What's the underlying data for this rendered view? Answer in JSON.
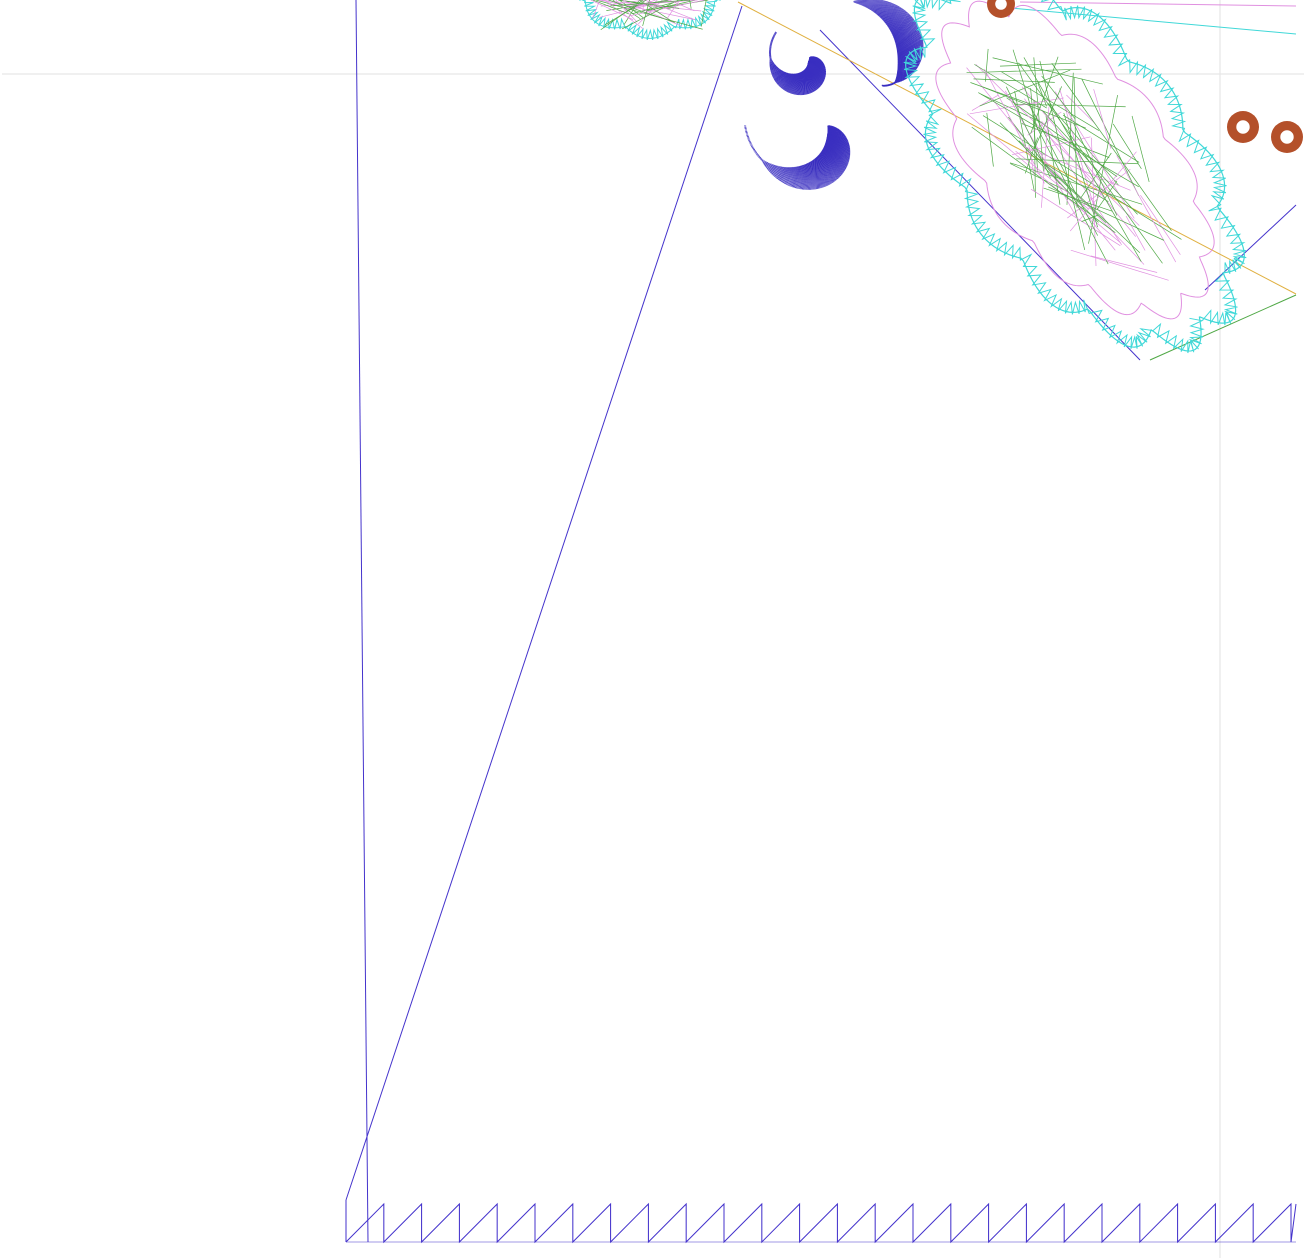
{
  "canvas": {
    "name": "embroidery-stitch-preview",
    "background": "#ffffff"
  },
  "guides": {
    "color": "#e6e6e6"
  },
  "thread_colors": {
    "jump": "#4433cc",
    "satin_border": "#40d8d8",
    "fill_green": "#4fa845",
    "fill_pink": "#e090e0",
    "running_yellow": "#e0b040",
    "spiral_blue": "#3a2fc0",
    "grommet_brown": "#b4502a",
    "zigzag_base": "#4433cc"
  },
  "elements": {
    "top_left_motif": "satin-scalloped-motif",
    "spirals": "blue-satin-spiral-motif",
    "flower": "scalloped-fill-motif",
    "grommets": "brown-eyelet-rings",
    "base": "zigzag-stitch-row"
  }
}
